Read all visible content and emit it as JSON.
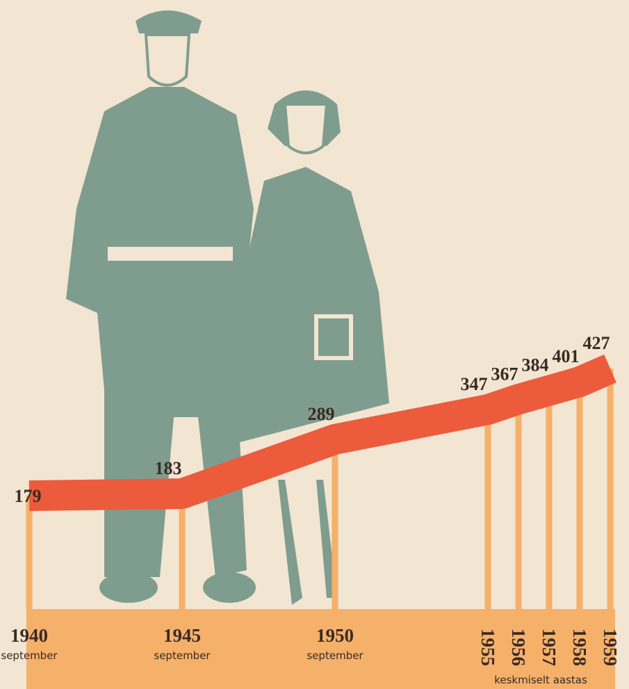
{
  "chart_data": {
    "type": "line",
    "x": [
      1940,
      1945,
      1950,
      1955,
      1956,
      1957,
      1958,
      1959
    ],
    "x_sublabels": [
      "september",
      "september",
      "september",
      null,
      null,
      null,
      null,
      null
    ],
    "values": [
      179,
      183,
      289,
      347,
      367,
      384,
      401,
      427
    ],
    "note": "keskmiselt aastas",
    "color": "#ec5b3c",
    "post_color": "#f5b06a"
  }
}
